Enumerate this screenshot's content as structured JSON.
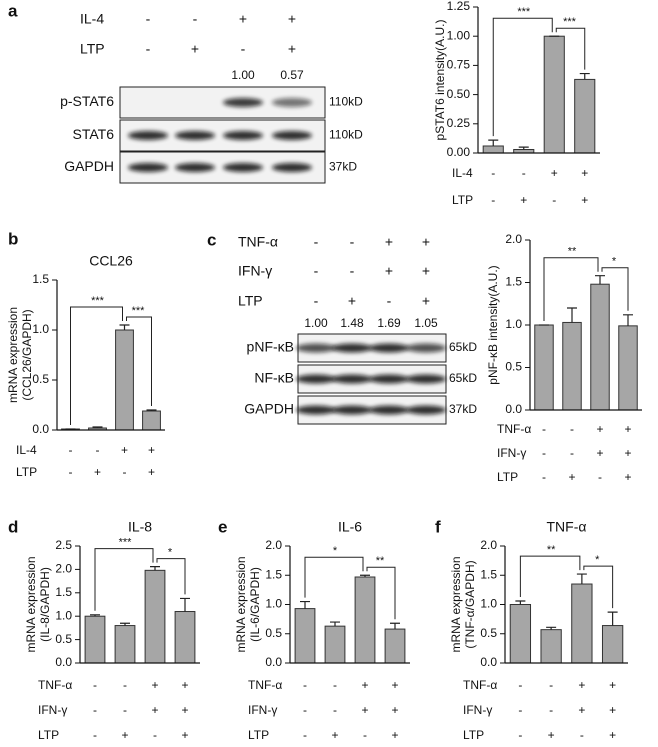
{
  "blots": [
    {
      "panel": "a",
      "conditions": [
        {
          "name": "IL-4",
          "signs": [
            "-",
            "-",
            "+",
            "+"
          ]
        },
        {
          "name": "LTP",
          "signs": [
            "-",
            "+",
            "-",
            "+"
          ]
        }
      ],
      "quantification": [
        null,
        null,
        "1.00",
        "0.57"
      ],
      "rows": [
        {
          "name": "p-STAT6",
          "size": "110kD"
        },
        {
          "name": "STAT6",
          "size": "110kD"
        },
        {
          "name": "GAPDH",
          "size": "37kD"
        }
      ]
    },
    {
      "panel": "c",
      "conditions": [
        {
          "name": "TNF-α",
          "signs": [
            "-",
            "-",
            "+",
            "+"
          ]
        },
        {
          "name": "IFN-γ",
          "signs": [
            "-",
            "-",
            "+",
            "+"
          ]
        },
        {
          "name": "LTP",
          "signs": [
            "-",
            "+",
            "-",
            "+"
          ]
        }
      ],
      "quantification": [
        "1.00",
        "1.48",
        "1.69",
        "1.05"
      ],
      "rows": [
        {
          "name": "pNF-κB",
          "size": "65kD"
        },
        {
          "name": "NF-κB",
          "size": "65kD"
        },
        {
          "name": "GAPDH",
          "size": "37kD"
        }
      ]
    }
  ],
  "chart_data": [
    {
      "type": "bar",
      "ylabel": [
        "pSTAT6 intensity(A.U.)"
      ],
      "color": "#a6a6a6",
      "values": [
        0.06,
        0.03,
        1.0,
        0.63
      ],
      "errors": [
        0.05,
        0.02,
        0,
        0.05
      ],
      "ylim": [
        0,
        1.25
      ],
      "yticks": [
        {
          "value": 0,
          "label": "0.00"
        },
        {
          "value": 0.25,
          "label": "0.25"
        },
        {
          "value": 0.5,
          "label": "0.50"
        },
        {
          "value": 0.75,
          "label": "0.75"
        },
        {
          "value": 1,
          "label": "1.00"
        },
        {
          "value": 1.25,
          "label": "1.25"
        }
      ],
      "conditions": [
        {
          "name": "IL-4",
          "signs": [
            "-",
            "-",
            "+",
            "+"
          ]
        },
        {
          "name": "LTP",
          "signs": [
            "-",
            "+",
            "-",
            "+"
          ]
        }
      ],
      "significance": [
        {
          "label": "***",
          "bars": [
            0,
            2
          ]
        },
        {
          "label": "***",
          "bars": [
            2,
            3
          ]
        }
      ]
    },
    {
      "type": "bar",
      "panel": "b",
      "title": "CCL26",
      "ylabel": [
        "mRNA expression",
        "(CCL26/GAPDH)"
      ],
      "color": "#a6a6a6",
      "values": [
        0.01,
        0.02,
        1.0,
        0.19
      ],
      "errors": [
        0,
        0.01,
        0.05,
        0.01
      ],
      "ylim": [
        0,
        1.5
      ],
      "yticks": [
        {
          "value": 0,
          "label": "0.0"
        },
        {
          "value": 0.5,
          "label": "0.5"
        },
        {
          "value": 1,
          "label": "1.0"
        },
        {
          "value": 1.5,
          "label": "1.5"
        }
      ],
      "conditions": [
        {
          "name": "IL-4",
          "signs": [
            "-",
            "-",
            "+",
            "+"
          ]
        },
        {
          "name": "LTP",
          "signs": [
            "-",
            "+",
            "-",
            "+"
          ]
        }
      ],
      "significance": [
        {
          "label": "***",
          "bars": [
            0,
            2
          ]
        },
        {
          "label": "***",
          "bars": [
            2,
            3
          ]
        }
      ]
    },
    {
      "type": "bar",
      "ylabel": [
        "pNF-κB intensity(A.U.)"
      ],
      "color": "#a6a6a6",
      "values": [
        1.0,
        1.03,
        1.48,
        0.99
      ],
      "errors": [
        0,
        0.17,
        0.1,
        0.13
      ],
      "ylim": [
        0,
        2
      ],
      "yticks": [
        {
          "value": 0,
          "label": "0.0"
        },
        {
          "value": 0.5,
          "label": "0.5"
        },
        {
          "value": 1,
          "label": "1.0"
        },
        {
          "value": 1.5,
          "label": "1.5"
        },
        {
          "value": 2,
          "label": "2.0"
        }
      ],
      "conditions": [
        {
          "name": "TNF-α",
          "signs": [
            "-",
            "-",
            "+",
            "+"
          ]
        },
        {
          "name": "IFN-γ",
          "signs": [
            "-",
            "-",
            "+",
            "+"
          ]
        },
        {
          "name": "LTP",
          "signs": [
            "-",
            "+",
            "-",
            "+"
          ]
        }
      ],
      "significance": [
        {
          "label": "**",
          "bars": [
            0,
            2
          ]
        },
        {
          "label": "*",
          "bars": [
            2,
            3
          ]
        }
      ]
    },
    {
      "type": "bar",
      "panel": "d",
      "title": "IL-8",
      "ylabel": [
        "mRNA expression",
        "(IL-8/GAPDH)"
      ],
      "color": "#a6a6a6",
      "values": [
        1.0,
        0.8,
        1.98,
        1.1
      ],
      "errors": [
        0.03,
        0.05,
        0.08,
        0.28
      ],
      "ylim": [
        0,
        2.5
      ],
      "yticks": [
        {
          "value": 0,
          "label": "0.0"
        },
        {
          "value": 0.5,
          "label": "0.5"
        },
        {
          "value": 1,
          "label": "1.0"
        },
        {
          "value": 1.5,
          "label": "1.5"
        },
        {
          "value": 2,
          "label": "2.0"
        },
        {
          "value": 2.5,
          "label": "2.5"
        }
      ],
      "conditions": [
        {
          "name": "TNF-α",
          "signs": [
            "-",
            "-",
            "+",
            "+"
          ]
        },
        {
          "name": "IFN-γ",
          "signs": [
            "-",
            "-",
            "+",
            "+"
          ]
        },
        {
          "name": "LTP",
          "signs": [
            "-",
            "+",
            "-",
            "+"
          ]
        }
      ],
      "significance": [
        {
          "label": "***",
          "bars": [
            0,
            2
          ]
        },
        {
          "label": "*",
          "bars": [
            2,
            3
          ]
        }
      ]
    },
    {
      "type": "bar",
      "panel": "e",
      "title": "IL-6",
      "ylabel": [
        "mRNA expression",
        "(IL-6/GAPDH)"
      ],
      "color": "#a6a6a6",
      "values": [
        0.93,
        0.63,
        1.47,
        0.58
      ],
      "errors": [
        0.12,
        0.07,
        0.03,
        0.1
      ],
      "ylim": [
        0,
        2
      ],
      "yticks": [
        {
          "value": 0,
          "label": "0.0"
        },
        {
          "value": 0.5,
          "label": "0.5"
        },
        {
          "value": 1,
          "label": "1.0"
        },
        {
          "value": 1.5,
          "label": "1.5"
        },
        {
          "value": 2,
          "label": "2.0"
        }
      ],
      "conditions": [
        {
          "name": "TNF-α",
          "signs": [
            "-",
            "-",
            "+",
            "+"
          ]
        },
        {
          "name": "IFN-γ",
          "signs": [
            "-",
            "-",
            "+",
            "+"
          ]
        },
        {
          "name": "LTP",
          "signs": [
            "-",
            "+",
            "-",
            "+"
          ]
        }
      ],
      "significance": [
        {
          "label": "*",
          "bars": [
            0,
            2
          ]
        },
        {
          "label": "**",
          "bars": [
            2,
            3
          ]
        }
      ]
    },
    {
      "type": "bar",
      "panel": "f",
      "title": "TNF-α",
      "ylabel": [
        "mRNA expression",
        "(TNF-α/GAPDH)"
      ],
      "color": "#a6a6a6",
      "values": [
        1.0,
        0.57,
        1.35,
        0.64
      ],
      "errors": [
        0.06,
        0.04,
        0.17,
        0.23
      ],
      "ylim": [
        0,
        2
      ],
      "yticks": [
        {
          "value": 0,
          "label": "0.0"
        },
        {
          "value": 0.5,
          "label": "0.5"
        },
        {
          "value": 1,
          "label": "1.0"
        },
        {
          "value": 1.5,
          "label": "1.5"
        },
        {
          "value": 2,
          "label": "2.0"
        }
      ],
      "conditions": [
        {
          "name": "TNF-α",
          "signs": [
            "-",
            "-",
            "+",
            "+"
          ]
        },
        {
          "name": "IFN-γ",
          "signs": [
            "-",
            "-",
            "+",
            "+"
          ]
        },
        {
          "name": "LTP",
          "signs": [
            "-",
            "+",
            "-",
            "+"
          ]
        }
      ],
      "significance": [
        {
          "label": "**",
          "bars": [
            0,
            2
          ]
        },
        {
          "label": "*",
          "bars": [
            2,
            3
          ]
        }
      ]
    }
  ]
}
